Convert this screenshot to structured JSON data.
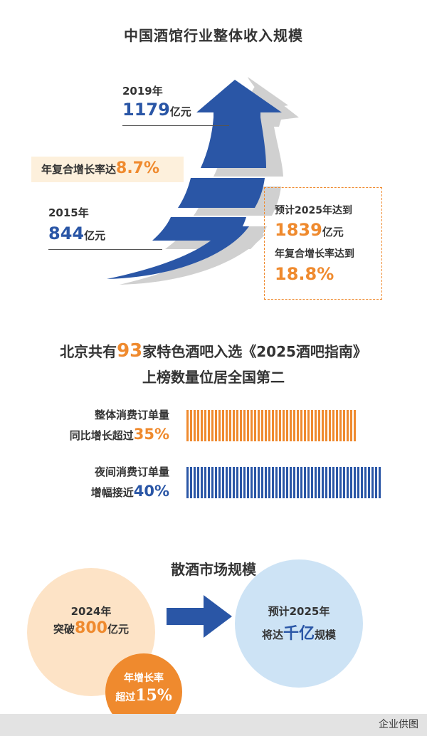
{
  "section1": {
    "title": "中国酒馆行业整体收入规模",
    "y2019": {
      "year": "2019年",
      "value": "1179",
      "unit": "亿元"
    },
    "y2015": {
      "year": "2015年",
      "value": "844",
      "unit": "亿元"
    },
    "cagr": {
      "label": "年复合增长率达",
      "value": "8.7%"
    },
    "forecast": {
      "line1": "预计2025年达到",
      "value": "1839",
      "unit": "亿元",
      "line3": "年复合增长率达到",
      "rate": "18.8%"
    }
  },
  "section2": {
    "headline1": {
      "pre": "北京共有",
      "num": "93",
      "post": "家特色酒吧入选《2025酒吧指南》"
    },
    "headline2": "上榜数量位居全国第二",
    "bar1": {
      "label1": "整体消费订单量",
      "label2_pre": "同比增长超过",
      "pct": "35%",
      "fill": 0.35,
      "color": "#ef8a2e"
    },
    "bar2": {
      "label1": "夜间消费订单量",
      "label2_pre": "增幅接近",
      "pct": "40%",
      "fill": 0.4,
      "color": "#2a56a6"
    }
  },
  "section3": {
    "title": "散酒市场规模",
    "left": {
      "line1": "2024年",
      "pre": "突破",
      "num": "800",
      "unit": "亿元"
    },
    "badge": {
      "line1": "年增长率",
      "pre": "超过",
      "num": "15%"
    },
    "right": {
      "line1": "预计2025年",
      "pre": "将达",
      "num": "千亿",
      "post": "规模"
    }
  },
  "footer": {
    "credit": "企业供图"
  },
  "colors": {
    "blue": "#2a56a6",
    "orange": "#ef8a2e",
    "cream": "#fdf0dc",
    "lightblue": "#cde3f5",
    "peach": "#fde3c6"
  }
}
